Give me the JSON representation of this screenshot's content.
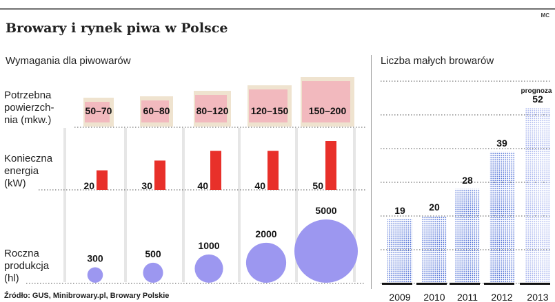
{
  "header": {
    "corner_tag": "MC",
    "title": "Browary i rynek piwa w Polsce",
    "left_section_title": "Wymagania dla piwowarów",
    "right_section_title": "Liczba małych browarów",
    "source": "Źródło: GUS, Minibrowary.pl, Browary Polskie"
  },
  "rows": {
    "area": [
      "Potrzebna",
      "powierzch-",
      "nia (mkw.)"
    ],
    "energy": [
      "Konieczna",
      "energia",
      "(kW)"
    ],
    "production": [
      "Roczna",
      "produkcja",
      "(hl)"
    ]
  },
  "colors": {
    "area_fill": "#f2b9be",
    "area_shadow": "#efe3cf",
    "energy_bar": "#e8302a",
    "production_circle": "#9c97f0",
    "dot_bar": "#5a78d8",
    "forecast_dot_bar": "#aab6ee",
    "column_stripe": "#e6e6e6"
  },
  "chart_data": [
    {
      "type": "table",
      "title": "Wymagania dla piwowarów",
      "columns": 5,
      "area_m2": [
        "50–70",
        "60–80",
        "80–120",
        "120–150",
        "150–200"
      ],
      "energy_kw": [
        20,
        30,
        40,
        40,
        50
      ],
      "annual_production_hl": [
        300,
        500,
        1000,
        2000,
        5000
      ]
    },
    {
      "type": "bar",
      "title": "Liczba małych browarów",
      "categories": [
        "2009",
        "2010",
        "2011",
        "2012",
        "2013"
      ],
      "values": [
        19,
        20,
        28,
        39,
        52
      ],
      "forecast_category": "2013",
      "forecast_label": "prognoza",
      "ylim": [
        0,
        60
      ],
      "grid": true
    }
  ]
}
